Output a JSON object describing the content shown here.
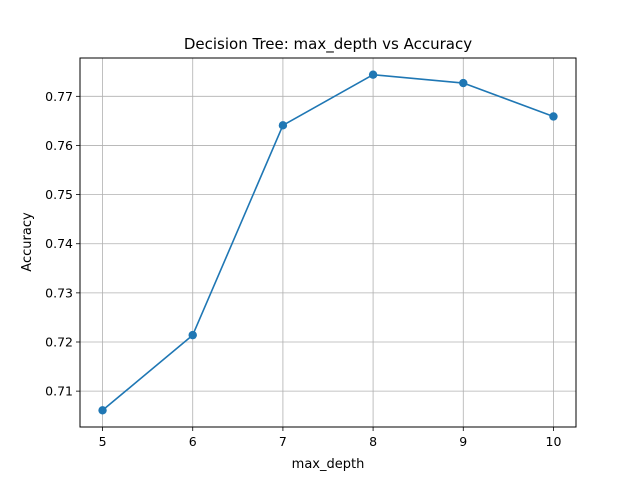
{
  "chart_data": {
    "type": "line",
    "title": "Decision Tree: max_depth vs Accuracy",
    "xlabel": "max_depth",
    "ylabel": "Accuracy",
    "x": [
      5,
      6,
      7,
      8,
      9,
      10
    ],
    "series": [
      {
        "values": [
          0.7061,
          0.7214,
          0.7641,
          0.7744,
          0.7727,
          0.7659
        ]
      }
    ],
    "xlim": [
      4.75,
      10.25
    ],
    "ylim": [
      0.7027,
      0.7778
    ],
    "xticks": [
      "5",
      "6",
      "7",
      "8",
      "9",
      "10"
    ],
    "yticks": [
      "0.71",
      "0.72",
      "0.73",
      "0.74",
      "0.75",
      "0.76",
      "0.77"
    ],
    "grid": true,
    "marker": "circle",
    "line_color": "#1f77b4"
  }
}
